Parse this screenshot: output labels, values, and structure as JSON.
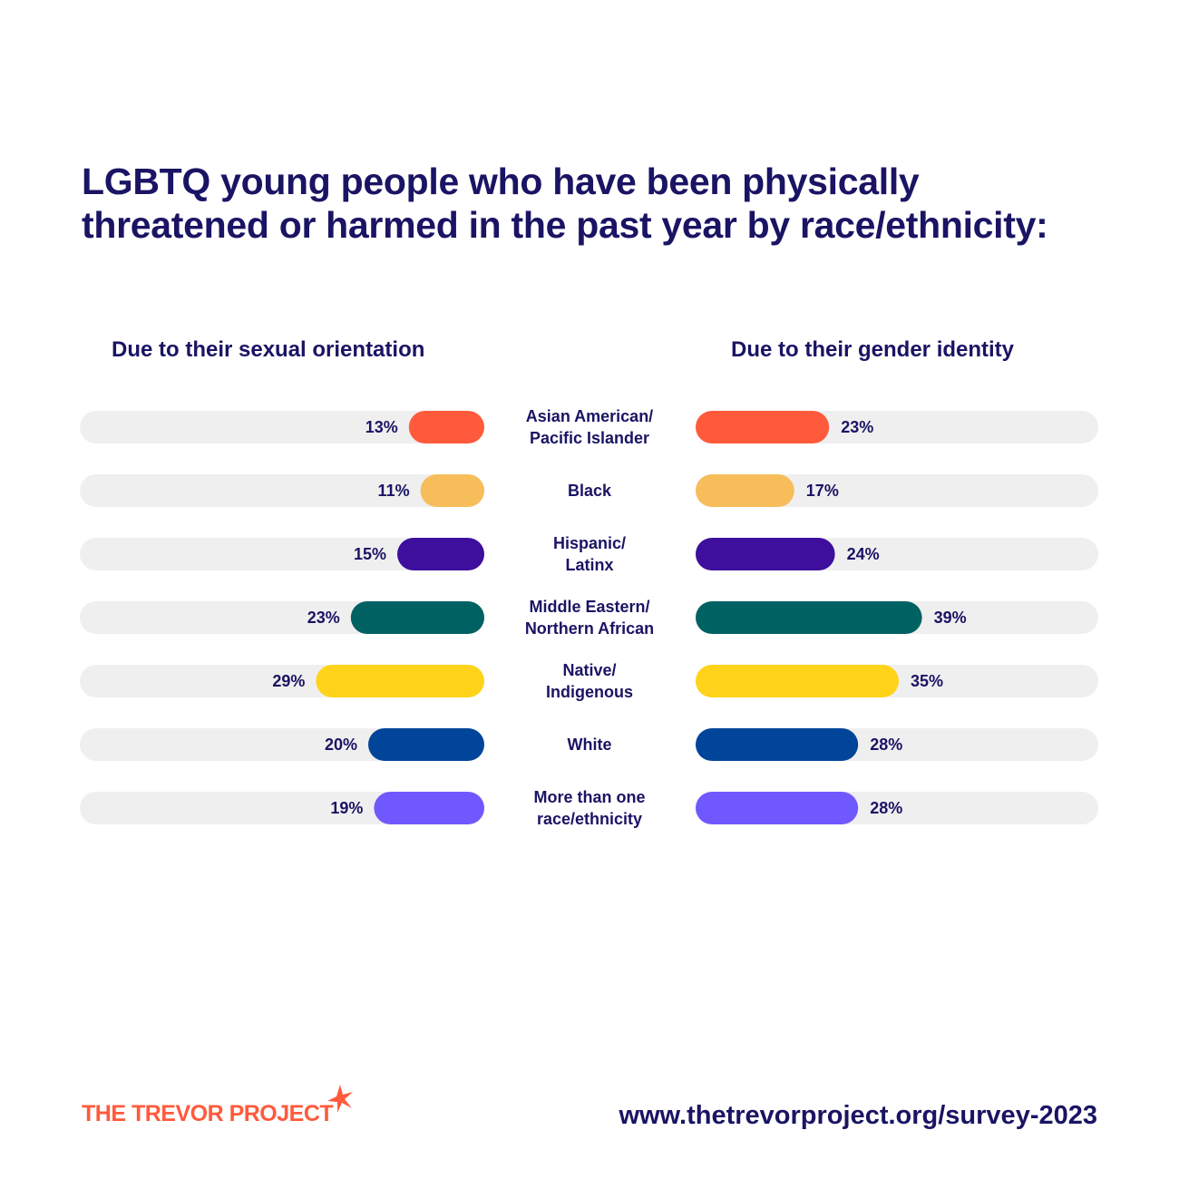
{
  "title_lines": [
    "LGBTQ young people who have been physically",
    "threatened or harmed in the past year by race/ethnicity:"
  ],
  "footer": {
    "logo_text": "THE TREVOR PROJECT",
    "url": "www.thetrevorproject.org/survey-2023",
    "logo_color": "#ff5a3c"
  },
  "chart_data": {
    "type": "bar",
    "title": "LGBTQ young people who have been physically threatened or harmed in the past year by race/ethnicity:",
    "categories": [
      [
        "Asian American/",
        "Pacific Islander"
      ],
      [
        "Black"
      ],
      [
        "Hispanic/",
        "Latinx"
      ],
      [
        "Middle Eastern/",
        "Northern African"
      ],
      [
        "Native/",
        "Indigenous"
      ],
      [
        "White"
      ],
      [
        "More than one",
        "race/ethnicity"
      ]
    ],
    "colors": [
      "#ff5a3c",
      "#f7bd5a",
      "#3e0e9c",
      "#006163",
      "#ffd319",
      "#004599",
      "#7058ff"
    ],
    "track_color": "#efefef",
    "series": [
      {
        "name": "Due to their sexual orientation",
        "values": [
          13,
          11,
          15,
          23,
          29,
          20,
          19
        ],
        "direction": "right-to-left"
      },
      {
        "name": "Due to their gender identity",
        "values": [
          23,
          17,
          24,
          39,
          35,
          28,
          28
        ],
        "direction": "left-to-right"
      }
    ],
    "unit": "%",
    "ylim": [
      0,
      100
    ]
  }
}
